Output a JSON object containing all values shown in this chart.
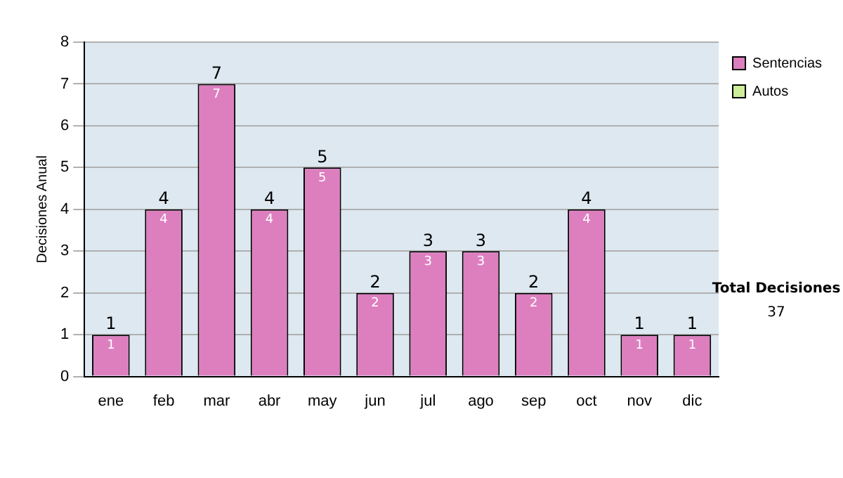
{
  "chart_data": {
    "type": "bar",
    "ylabel": "Decisiones Anual",
    "categories": [
      "ene",
      "feb",
      "mar",
      "abr",
      "may",
      "jun",
      "jul",
      "ago",
      "sep",
      "oct",
      "nov",
      "dic"
    ],
    "series": [
      {
        "name": "Sentencias",
        "color": "#dd7fbf",
        "values": [
          1,
          4,
          7,
          4,
          5,
          2,
          3,
          3,
          2,
          4,
          1,
          1
        ],
        "value_labels": [
          "1",
          "4",
          "7",
          "4",
          "5",
          "2",
          "3",
          "3",
          "2",
          "4",
          "1",
          "1"
        ]
      },
      {
        "name": "Autos",
        "color": "#ccee99",
        "values": [
          0,
          0,
          0,
          0,
          0,
          0,
          0,
          0,
          0,
          0,
          0,
          0
        ]
      }
    ],
    "stacked": true,
    "totals": [
      "1",
      "4",
      "7",
      "4",
      "5",
      "2",
      "3",
      "3",
      "2",
      "4",
      "1",
      "1"
    ],
    "ylim": [
      0,
      8
    ],
    "yticks": [
      0,
      1,
      2,
      3,
      4,
      5,
      6,
      7,
      8
    ],
    "grid": "y",
    "legend": "right top",
    "annotations": [
      "Total Decisiones",
      "37"
    ]
  }
}
